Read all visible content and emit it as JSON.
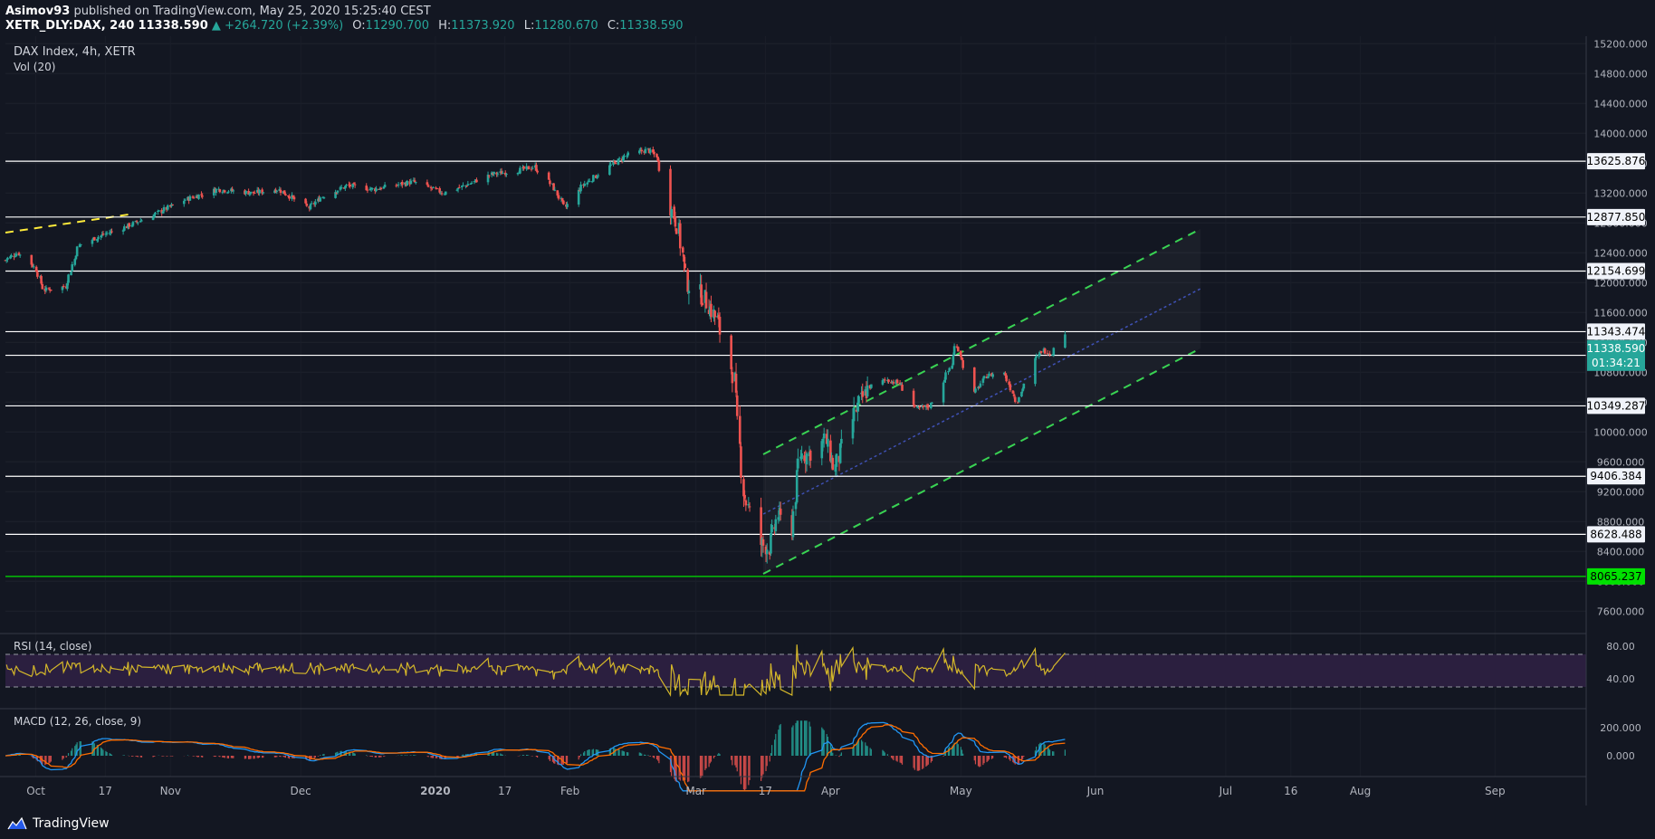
{
  "header": {
    "author": "Asimov93",
    "published_text": "published on TradingView.com, May 25, 2020 15:25:40 CEST",
    "symbol": "XETR_DLY:DAX, 240",
    "last": "11338.590",
    "change": "▲ +264.720 (+2.39%)",
    "o_label": "O:",
    "o_val": "11290.700",
    "h_label": "H:",
    "h_val": "11373.920",
    "l_label": "L:",
    "l_val": "11280.670",
    "c_label": "C:",
    "c_val": "11338.590"
  },
  "legend": {
    "title": "DAX Index, 4h, XETR",
    "vol": "Vol (20)",
    "rsi": "RSI (14, close)",
    "macd": "MACD (12, 26, close, 9)"
  },
  "footer": {
    "brand": "TradingView"
  },
  "colors": {
    "background": "#131722",
    "up": "#26a69a",
    "down": "#ef5350",
    "channel": "#39d353",
    "trend": "#ffeb3b",
    "support_green": "#00e000",
    "rsi_line": "#d4b72a",
    "rsi_band": "#2b1f3f",
    "macd_line": "#2196f3",
    "signal_line": "#ff6d00"
  },
  "chart_data": {
    "type": "candlestick",
    "timeframe": "4h",
    "x_ticks": [
      "Oct",
      "17",
      "Nov",
      "Dec",
      "2020",
      "17",
      "Feb",
      "Mar",
      "17",
      "Apr",
      "May",
      "Jun",
      "Jul",
      "16",
      "Aug",
      "Sep"
    ],
    "y_ticks": [
      "15200.000",
      "14800.000",
      "14400.000",
      "14000.000",
      "13600.000",
      "13200.000",
      "12800.000",
      "12400.000",
      "12000.000",
      "11600.000",
      "11200.000",
      "10800.000",
      "10400.000",
      "10000.000",
      "9600.000",
      "9200.000",
      "8800.000",
      "8400.000",
      "8000.000",
      "7600.000"
    ],
    "ylim": [
      7300,
      15300
    ],
    "horizontal_levels": [
      {
        "value": 13625.876,
        "label": "13625.876",
        "color": "#ffffff"
      },
      {
        "value": 12877.85,
        "label": "12877.850",
        "color": "#ffffff"
      },
      {
        "value": 12154.699,
        "label": "12154.699",
        "color": "#ffffff"
      },
      {
        "value": 11343.474,
        "label": "11343.474",
        "color": "#ffffff"
      },
      {
        "value": 11026.522,
        "label": "11026.522",
        "color": "#ffffff"
      },
      {
        "value": 10349.287,
        "label": "10349.287",
        "color": "#ffffff"
      },
      {
        "value": 9406.384,
        "label": "9406.384",
        "color": "#ffffff"
      },
      {
        "value": 8628.488,
        "label": "8628.488",
        "color": "#ffffff"
      },
      {
        "value": 8065.237,
        "label": "8065.237",
        "color": "#00e000"
      }
    ],
    "last_price": {
      "value": 11338.59,
      "label": "11338.590",
      "countdown": "01:34:21"
    },
    "price_path": [
      [
        "2019-09-24",
        12300
      ],
      [
        "2019-09-27",
        12400
      ],
      [
        "2019-10-01",
        12200
      ],
      [
        "2019-10-03",
        11900
      ],
      [
        "2019-10-08",
        11950
      ],
      [
        "2019-10-11",
        12500
      ],
      [
        "2019-10-17",
        12650
      ],
      [
        "2019-10-22",
        12750
      ],
      [
        "2019-10-28",
        12900
      ],
      [
        "2019-11-04",
        13100
      ],
      [
        "2019-11-12",
        13250
      ],
      [
        "2019-11-20",
        13200
      ],
      [
        "2019-11-26",
        13250
      ],
      [
        "2019-12-03",
        13000
      ],
      [
        "2019-12-06",
        13150
      ],
      [
        "2019-12-12",
        13300
      ],
      [
        "2019-12-18",
        13250
      ],
      [
        "2019-12-27",
        13350
      ],
      [
        "2020-01-03",
        13200
      ],
      [
        "2020-01-08",
        13300
      ],
      [
        "2020-01-14",
        13450
      ],
      [
        "2020-01-20",
        13500
      ],
      [
        "2020-01-24",
        13550
      ],
      [
        "2020-01-28",
        13300
      ],
      [
        "2020-01-31",
        13000
      ],
      [
        "2020-02-04",
        13300
      ],
      [
        "2020-02-10",
        13550
      ],
      [
        "2020-02-14",
        13700
      ],
      [
        "2020-02-19",
        13780
      ],
      [
        "2020-02-21",
        13700
      ],
      [
        "2020-02-24",
        13050
      ],
      [
        "2020-02-26",
        12750
      ],
      [
        "2020-02-28",
        12000
      ],
      [
        "2020-03-03",
        11800
      ],
      [
        "2020-03-06",
        11500
      ],
      [
        "2020-03-10",
        10700
      ],
      [
        "2020-03-12",
        9200
      ],
      [
        "2020-03-16",
        8500
      ],
      [
        "2020-03-18",
        8450
      ],
      [
        "2020-03-20",
        8900
      ],
      [
        "2020-03-23",
        8600
      ],
      [
        "2020-03-25",
        9700
      ],
      [
        "2020-03-27",
        9700
      ],
      [
        "2020-03-31",
        9900
      ],
      [
        "2020-04-02",
        9500
      ],
      [
        "2020-04-07",
        10300
      ],
      [
        "2020-04-10",
        10600
      ],
      [
        "2020-04-14",
        10700
      ],
      [
        "2020-04-17",
        10650
      ],
      [
        "2020-04-21",
        10300
      ],
      [
        "2020-04-24",
        10350
      ],
      [
        "2020-04-29",
        10900
      ],
      [
        "2020-04-30",
        11200
      ],
      [
        "2020-05-04",
        10500
      ],
      [
        "2020-05-07",
        10750
      ],
      [
        "2020-05-11",
        10800
      ],
      [
        "2020-05-14",
        10400
      ],
      [
        "2020-05-18",
        10950
      ],
      [
        "2020-05-20",
        11100
      ],
      [
        "2020-05-22",
        11050
      ],
      [
        "2020-05-25",
        11338.59
      ]
    ],
    "rsi": {
      "upper": 70,
      "lower": 30,
      "ticks": [
        "80.00",
        "40.00"
      ]
    },
    "macd": {
      "ticks": [
        "200.000",
        "0.000"
      ]
    }
  }
}
